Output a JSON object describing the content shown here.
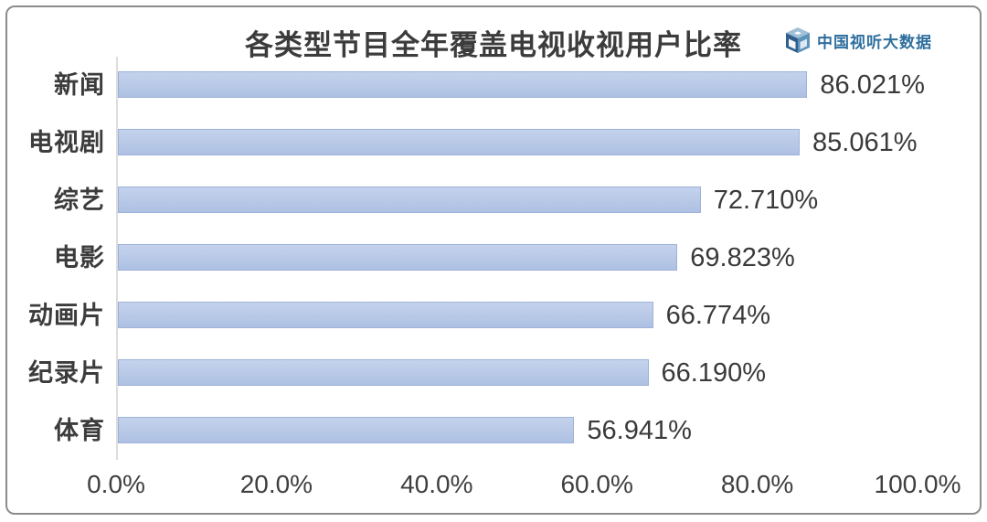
{
  "title": "各类型节目全年覆盖电视收视用户比率",
  "brand": {
    "name": "中国视听大数据",
    "color": "#2e6e9e",
    "icon": "cube-logo-icon"
  },
  "colors": {
    "bar": "#b4c5e6",
    "bar_border": "#9db2d8",
    "axis_line": "#dcdcdc",
    "text": "#3c3c3c",
    "frame_border": "#8c8c8c",
    "background": "#ffffff"
  },
  "chart_data": {
    "type": "bar",
    "orientation": "horizontal",
    "title": "各类型节目全年覆盖电视收视用户比率",
    "categories": [
      "新闻",
      "电视剧",
      "综艺",
      "电影",
      "动画片",
      "纪录片",
      "体育"
    ],
    "values": [
      86.021,
      85.061,
      72.71,
      69.823,
      66.774,
      66.19,
      56.941
    ],
    "value_labels": [
      "86.021%",
      "85.061%",
      "72.710%",
      "69.823%",
      "66.190%",
      "56.941%"
    ],
    "value_labels_full": [
      "86.021%",
      "85.061%",
      "72.710%",
      "69.823%",
      "66.774%",
      "66.190%",
      "56.941%"
    ],
    "xlabel": "",
    "ylabel": "",
    "xlim": [
      0,
      100
    ],
    "x_tick_labels": [
      "0.0%",
      "20.0%",
      "40.0%",
      "60.0%",
      "80.0%",
      "100.0%"
    ],
    "x_tick_values": [
      0,
      20,
      40,
      60,
      80,
      100
    ],
    "grid": false,
    "legend": false,
    "bar_color": "#b4c5e6"
  }
}
